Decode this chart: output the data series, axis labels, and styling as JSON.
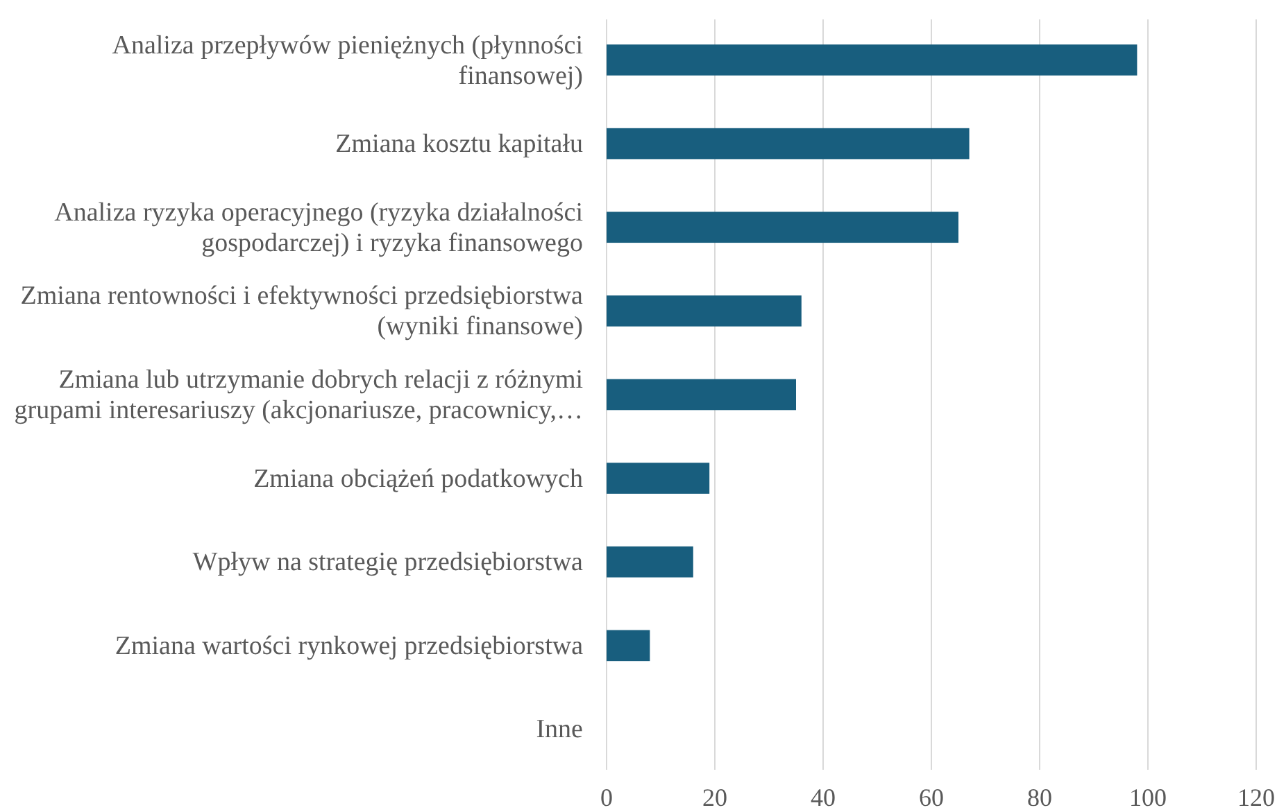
{
  "chart_data": {
    "type": "bar",
    "orientation": "horizontal",
    "categories": [
      "Analiza przepływów pieniężnych (płynności finansowej)",
      "Zmiana kosztu kapitału",
      "Analiza ryzyka operacyjnego (ryzyka działalności gospodarczej) i ryzyka finansowego",
      "Zmiana rentowności i efektywności przedsiębiorstwa (wyniki finansowe)",
      "Zmiana lub utrzymanie dobrych relacji z różnymi grupami interesariuszy (akcjonariusze, pracownicy,…",
      "Zmiana obciążeń podatkowych",
      "Wpływ na strategię przedsiębiorstwa",
      "Zmiana wartości rynkowej przedsiębiorstwa",
      "Inne"
    ],
    "values": [
      98,
      67,
      65,
      36,
      35,
      19,
      16,
      8,
      0
    ],
    "color": "#185e7e",
    "xlim": [
      0,
      120
    ],
    "xticks": [
      0,
      20,
      40,
      60,
      80,
      100,
      120
    ],
    "grid": "x"
  }
}
